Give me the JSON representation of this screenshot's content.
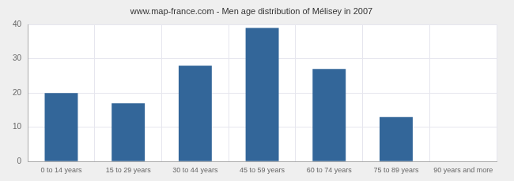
{
  "chart_data": {
    "type": "bar",
    "title": "www.map-france.com - Men age distribution of Mélisey in 2007",
    "categories": [
      "0 to 14 years",
      "15 to 29 years",
      "30 to 44 years",
      "45 to 59 years",
      "60 to 74 years",
      "75 to 89 years",
      "90 years and more"
    ],
    "values": [
      20,
      17,
      28,
      39,
      27,
      13,
      0
    ],
    "color": "#336699",
    "ylim": [
      0,
      40
    ],
    "yticks": [
      0,
      10,
      20,
      30,
      40
    ],
    "grid": true
  }
}
